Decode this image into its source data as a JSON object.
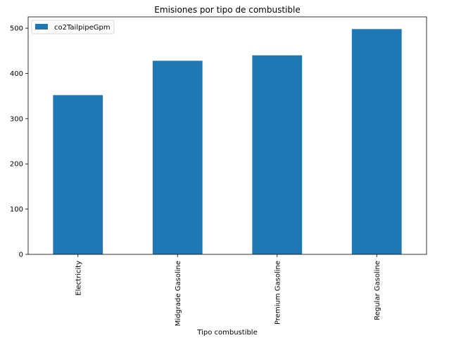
{
  "chart_data": {
    "type": "bar",
    "title": "Emisiones por tipo de combustible",
    "xlabel": "Tipo combustible",
    "ylabel": "",
    "categories": [
      "Electricity",
      "Midgrade Gasoline",
      "Premium Gasoline",
      "Regular Gasoline"
    ],
    "series": [
      {
        "name": "co2TailpipeGpm",
        "values": [
          352,
          428,
          440,
          498
        ],
        "color": "#1f77b4"
      }
    ],
    "ylim": [
      0,
      525
    ],
    "yticks": [
      0,
      100,
      200,
      300,
      400,
      500
    ],
    "grid": false,
    "legend_position": "top-left"
  }
}
